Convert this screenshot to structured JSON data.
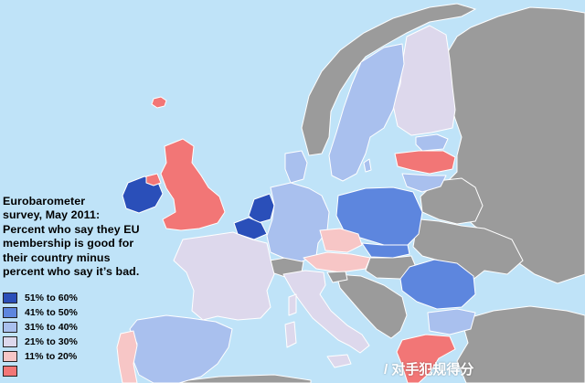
{
  "title_lines": [
    "Eurobarometer",
    "survey, May 2011:",
    "Percent who say they EU",
    "membership is good for",
    "their country minus",
    "percent who say it’s bad."
  ],
  "legend": [
    {
      "label": "51% to 60%",
      "color": "#2a4fb9"
    },
    {
      "label": "41% to 50%",
      "color": "#5d86de"
    },
    {
      "label": "31% to 40%",
      "color": "#a9c0ee"
    },
    {
      "label": "21% to 30%",
      "color": "#ddd8ec"
    },
    {
      "label": "11% to 20%",
      "color": "#f7c6c6"
    },
    {
      "label": "",
      "color": "#f27676"
    }
  ],
  "non_eu_color": "#9b9b9b",
  "sea_color": "#bfe3f8",
  "watermark_text": "/ 对手犯规得分",
  "countries": [
    {
      "name": "Ireland",
      "class": "51% to 60%"
    },
    {
      "name": "United Kingdom",
      "class": "11% to 20%"
    },
    {
      "name": "Netherlands",
      "class": "51% to 60%"
    },
    {
      "name": "Belgium",
      "class": "51% to 60%"
    },
    {
      "name": "Poland",
      "class": "41% to 50%"
    },
    {
      "name": "Slovakia",
      "class": "41% to 50%"
    },
    {
      "name": "Romania",
      "class": "41% to 50%"
    },
    {
      "name": "Sweden",
      "class": "31% to 40%"
    },
    {
      "name": "Denmark",
      "class": "31% to 40%"
    },
    {
      "name": "Germany",
      "class": "31% to 40%"
    },
    {
      "name": "Estonia",
      "class": "31% to 40%"
    },
    {
      "name": "Lithuania",
      "class": "31% to 40%"
    },
    {
      "name": "Spain",
      "class": "31% to 40%"
    },
    {
      "name": "Bulgaria",
      "class": "31% to 40%"
    },
    {
      "name": "Finland",
      "class": "21% to 30%"
    },
    {
      "name": "France",
      "class": "21% to 30%"
    },
    {
      "name": "Italy",
      "class": "21% to 30%"
    },
    {
      "name": "Czech Republic",
      "class": "11% to 20%"
    },
    {
      "name": "Austria",
      "class": "11% to 20%"
    },
    {
      "name": "Portugal",
      "class": "11% to 20%"
    },
    {
      "name": "Latvia",
      "class": "lowest"
    },
    {
      "name": "Greece",
      "class": "lowest"
    }
  ]
}
